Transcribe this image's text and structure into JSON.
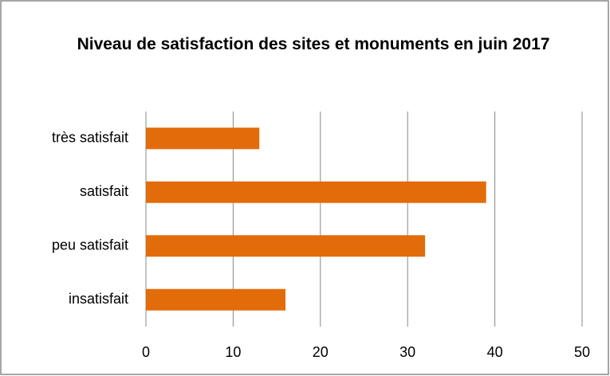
{
  "chart_data": {
    "type": "barh",
    "title": "Niveau de satisfaction des sites et monuments en juin 2017",
    "categories": [
      "très satisfait",
      "satisfait",
      "peu satisfait",
      "insatisfait"
    ],
    "values": [
      13,
      39,
      32,
      16
    ],
    "color": "#e36c0a",
    "xlim": [
      0,
      50
    ],
    "xticks": [
      0,
      10,
      20,
      30,
      40,
      50
    ],
    "grid": true
  }
}
